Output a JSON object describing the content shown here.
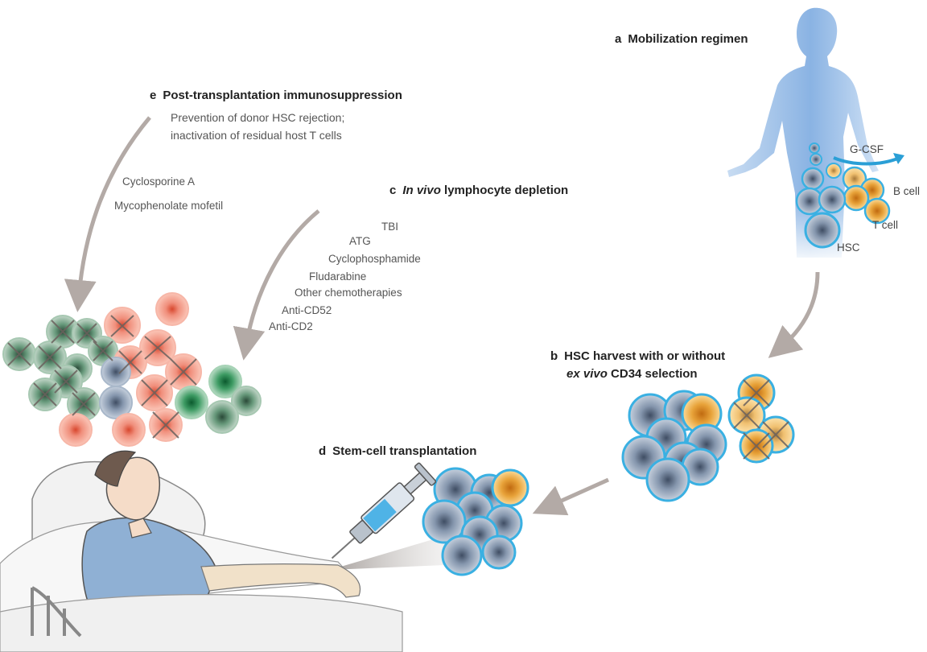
{
  "steps": {
    "a": {
      "letter": "a",
      "title": "Mobilization regimen"
    },
    "b": {
      "letter": "b",
      "title_line1": "HSC harvest with or without",
      "title_line2_italic": "ex vivo",
      "title_line2_rest": " CD34 selection"
    },
    "c": {
      "letter": "c",
      "title_italic": "In vivo",
      "title_rest": " lymphocyte depletion"
    },
    "d": {
      "letter": "d",
      "title": "Stem-cell transplantation"
    },
    "e": {
      "letter": "e",
      "title": "Post-transplantation immunosuppression",
      "desc_line1": "Prevention of donor HSC rejection;",
      "desc_line2": "inactivation of residual host T cells"
    }
  },
  "immunosuppressants": [
    "Cyclosporine A",
    "Mycophenolate mofetil"
  ],
  "depletion_agents": [
    "TBI",
    "ATG",
    "Cyclophosphamide",
    "Fludarabine",
    "Other chemotherapies",
    "Anti-CD52",
    "Anti-CD2"
  ],
  "cell_labels": {
    "gcsf": "G-CSF",
    "bcell": "B cell",
    "tcell": "T cell",
    "hsc": "HSC"
  },
  "colors": {
    "hsc_fill": "#8fa2b8",
    "hsc_ring": "#3ab0e2",
    "bcell_fill": "#e8a33a",
    "tcell_fill": "#f5c870",
    "host_red": "#f09a88",
    "host_green": "#3c9a62",
    "arrow_gray": "#b3aaa6"
  }
}
